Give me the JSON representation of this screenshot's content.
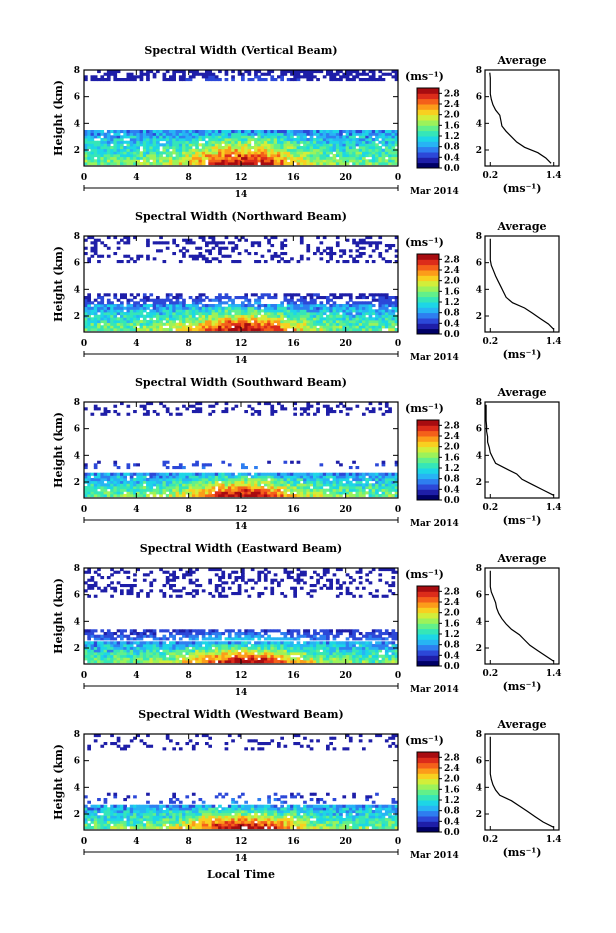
{
  "figure": {
    "xlabel": "Local Time",
    "date_label": "Mar 2014",
    "day_label": "14",
    "ylabel": "Height (km)",
    "cb_unit": "(ms⁻¹)",
    "avg_title": "Average",
    "avg_xlabel": "(ms⁻¹)",
    "colormap": [
      "#000066",
      "#1e1ea8",
      "#2c48d8",
      "#2e7ef0",
      "#27b4f4",
      "#1dd6e6",
      "#35e6b8",
      "#62f08a",
      "#9cf25a",
      "#d2ee3a",
      "#f8d020",
      "#fc9c1a",
      "#f4601a",
      "#dc2c1a",
      "#a80c10"
    ]
  },
  "chart_data": [
    {
      "type": "heatmap",
      "title": "Spectral Width (Vertical Beam)",
      "x_ticks": [
        "0",
        "4",
        "8",
        "12",
        "16",
        "20",
        "0"
      ],
      "y_ticks": [
        "2",
        "4",
        "6",
        "8"
      ],
      "xlim": [
        0,
        24
      ],
      "ylim": [
        0.8,
        8
      ],
      "colorbar_ticks": [
        "0.0",
        "0.4",
        "0.8",
        "1.2",
        "1.6",
        "2.0",
        "2.4",
        "2.8"
      ],
      "colorbar_range": [
        0,
        3.0
      ],
      "layers": [
        {
          "y_bottom": 0.9,
          "y_top": 3.4,
          "strength": 1.0,
          "coverage": 0.95
        },
        {
          "y_bottom": 7.2,
          "y_top": 8.0,
          "strength": 0.1,
          "coverage": 0.6
        }
      ],
      "average_profile": {
        "title": "Average",
        "x_ticks": [
          "0.2",
          "1.4"
        ],
        "y_ticks": [
          "2",
          "4",
          "6",
          "8"
        ],
        "xlim": [
          0.1,
          1.5
        ],
        "ylim": [
          0.8,
          8
        ],
        "height": [
          1.0,
          1.4,
          1.8,
          2.2,
          2.6,
          3.0,
          3.4,
          3.8,
          4.2,
          4.6,
          5.0,
          5.4,
          5.8,
          6.2,
          6.6,
          7.0,
          7.4,
          7.8
        ],
        "width": [
          1.35,
          1.25,
          1.1,
          0.85,
          0.7,
          0.6,
          0.5,
          0.42,
          0.4,
          0.38,
          0.3,
          0.25,
          0.22,
          0.2,
          0.2,
          0.2,
          0.2,
          0.19
        ]
      }
    },
    {
      "type": "heatmap",
      "title": "Spectral Width (Northward Beam)",
      "x_ticks": [
        "0",
        "4",
        "8",
        "12",
        "16",
        "20",
        "0"
      ],
      "y_ticks": [
        "2",
        "4",
        "6",
        "8"
      ],
      "xlim": [
        0,
        24
      ],
      "ylim": [
        0.8,
        8
      ],
      "colorbar_ticks": [
        "0.0",
        "0.4",
        "0.8",
        "1.2",
        "1.6",
        "2.0",
        "2.4",
        "2.8"
      ],
      "colorbar_range": [
        0,
        3.0
      ],
      "layers": [
        {
          "y_bottom": 0.9,
          "y_top": 2.8,
          "strength": 1.0,
          "coverage": 0.95
        },
        {
          "y_bottom": 2.9,
          "y_top": 3.6,
          "strength": 0.2,
          "coverage": 0.55
        },
        {
          "y_bottom": 6.0,
          "y_top": 8.0,
          "strength": 0.05,
          "coverage": 0.25
        }
      ],
      "average_profile": {
        "title": "Average",
        "x_ticks": [
          "0.2",
          "1.4"
        ],
        "y_ticks": [
          "2",
          "4",
          "6",
          "8"
        ],
        "xlim": [
          0.1,
          1.5
        ],
        "ylim": [
          0.8,
          8
        ],
        "height": [
          1.0,
          1.4,
          1.8,
          2.2,
          2.6,
          3.0,
          3.4,
          3.8,
          4.2,
          4.6,
          5.0,
          5.4,
          5.8,
          6.2,
          6.6,
          7.0,
          7.4,
          7.8
        ],
        "width": [
          1.4,
          1.3,
          1.15,
          1.0,
          0.85,
          0.62,
          0.5,
          0.45,
          0.4,
          0.35,
          0.3,
          0.26,
          0.22,
          0.2,
          0.2,
          0.2,
          0.2,
          0.2
        ]
      }
    },
    {
      "type": "heatmap",
      "title": "Spectral Width (Southward Beam)",
      "x_ticks": [
        "0",
        "4",
        "8",
        "12",
        "16",
        "20",
        "0"
      ],
      "y_ticks": [
        "2",
        "4",
        "6",
        "8"
      ],
      "xlim": [
        0,
        24
      ],
      "ylim": [
        0.8,
        8
      ],
      "colorbar_ticks": [
        "0.0",
        "0.4",
        "0.8",
        "1.2",
        "1.6",
        "2.0",
        "2.4",
        "2.8"
      ],
      "colorbar_range": [
        0,
        3.0
      ],
      "layers": [
        {
          "y_bottom": 0.9,
          "y_top": 2.6,
          "strength": 1.0,
          "coverage": 0.95
        },
        {
          "y_bottom": 3.0,
          "y_top": 3.6,
          "strength": 0.2,
          "coverage": 0.15
        },
        {
          "y_bottom": 7.0,
          "y_top": 8.0,
          "strength": 0.05,
          "coverage": 0.22
        }
      ],
      "average_profile": {
        "title": "Average",
        "x_ticks": [
          "0.2",
          "1.4"
        ],
        "y_ticks": [
          "2",
          "4",
          "6",
          "8"
        ],
        "xlim": [
          0.1,
          1.5
        ],
        "ylim": [
          0.8,
          8
        ],
        "height": [
          1.0,
          1.4,
          1.8,
          2.2,
          2.6,
          3.0,
          3.4,
          3.8,
          4.2,
          4.6,
          5.0,
          5.4,
          5.8,
          6.2,
          6.6,
          7.0,
          7.4,
          7.8
        ],
        "width": [
          1.4,
          1.2,
          1.0,
          0.8,
          0.7,
          0.5,
          0.3,
          0.25,
          0.2,
          0.18,
          0.15,
          0.15,
          0.13,
          0.13,
          0.12,
          0.12,
          0.12,
          0.12
        ]
      }
    },
    {
      "type": "heatmap",
      "title": "Spectral Width (Eastward Beam)",
      "x_ticks": [
        "0",
        "4",
        "8",
        "12",
        "16",
        "20",
        "0"
      ],
      "y_ticks": [
        "2",
        "4",
        "6",
        "8"
      ],
      "xlim": [
        0,
        24
      ],
      "ylim": [
        0.8,
        8
      ],
      "colorbar_ticks": [
        "0.0",
        "0.4",
        "0.8",
        "1.2",
        "1.6",
        "2.0",
        "2.4",
        "2.8"
      ],
      "colorbar_range": [
        0,
        3.0
      ],
      "layers": [
        {
          "y_bottom": 0.9,
          "y_top": 2.4,
          "strength": 1.0,
          "coverage": 0.95
        },
        {
          "y_bottom": 2.6,
          "y_top": 3.3,
          "strength": 0.3,
          "coverage": 0.7
        },
        {
          "y_bottom": 5.8,
          "y_top": 8.0,
          "strength": 0.05,
          "coverage": 0.3
        }
      ],
      "average_profile": {
        "title": "Average",
        "x_ticks": [
          "0.2",
          "1.4"
        ],
        "y_ticks": [
          "2",
          "4",
          "6",
          "8"
        ],
        "xlim": [
          0.1,
          1.5
        ],
        "ylim": [
          0.8,
          8
        ],
        "height": [
          1.0,
          1.4,
          1.8,
          2.2,
          2.6,
          3.0,
          3.4,
          3.8,
          4.2,
          4.6,
          5.0,
          5.4,
          5.8,
          6.2,
          6.6,
          7.0,
          7.4,
          7.8
        ],
        "width": [
          1.4,
          1.25,
          1.1,
          0.95,
          0.85,
          0.75,
          0.6,
          0.5,
          0.42,
          0.36,
          0.32,
          0.3,
          0.26,
          0.22,
          0.2,
          0.2,
          0.2,
          0.2
        ]
      }
    },
    {
      "type": "heatmap",
      "title": "Spectral Width (Westward Beam)",
      "x_ticks": [
        "0",
        "4",
        "8",
        "12",
        "16",
        "20",
        "0"
      ],
      "y_ticks": [
        "2",
        "4",
        "6",
        "8"
      ],
      "xlim": [
        0,
        24
      ],
      "ylim": [
        0.8,
        8
      ],
      "colorbar_ticks": [
        "0.0",
        "0.4",
        "0.8",
        "1.2",
        "1.6",
        "2.0",
        "2.4",
        "2.8"
      ],
      "colorbar_range": [
        0,
        3.0
      ],
      "layers": [
        {
          "y_bottom": 0.9,
          "y_top": 2.6,
          "strength": 1.0,
          "coverage": 0.95
        },
        {
          "y_bottom": 2.8,
          "y_top": 3.6,
          "strength": 0.2,
          "coverage": 0.2
        },
        {
          "y_bottom": 6.8,
          "y_top": 8.0,
          "strength": 0.05,
          "coverage": 0.18
        }
      ],
      "average_profile": {
        "title": "Average",
        "x_ticks": [
          "0.2",
          "1.4"
        ],
        "y_ticks": [
          "2",
          "4",
          "6",
          "8"
        ],
        "xlim": [
          0.1,
          1.5
        ],
        "ylim": [
          0.8,
          8
        ],
        "height": [
          1.0,
          1.4,
          1.8,
          2.2,
          2.6,
          3.0,
          3.4,
          3.8,
          4.2,
          4.6,
          5.0,
          5.4,
          5.8,
          6.2,
          6.6,
          7.0,
          7.4,
          7.8
        ],
        "width": [
          1.4,
          1.2,
          1.05,
          0.9,
          0.75,
          0.6,
          0.38,
          0.3,
          0.25,
          0.22,
          0.2,
          0.2,
          0.2,
          0.2,
          0.2,
          0.2,
          0.2,
          0.2
        ]
      }
    }
  ]
}
